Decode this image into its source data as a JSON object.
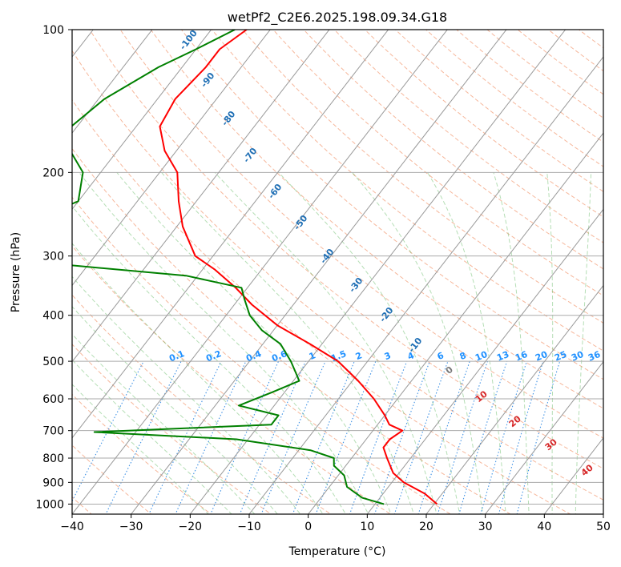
{
  "chart_data": {
    "type": "line",
    "title": "wetPf2_C2E6.2025.198.09.34.G18",
    "xlabel": "Temperature (°C)",
    "ylabel": "Pressure (hPa)",
    "xlim": [
      -40,
      50
    ],
    "ylim": [
      1050,
      100
    ],
    "y_scale": "log",
    "skew_t": true,
    "x_ticks": [
      -40,
      -30,
      -20,
      -10,
      0,
      10,
      20,
      30,
      40,
      50
    ],
    "y_ticks": [
      100,
      200,
      300,
      400,
      500,
      600,
      700,
      800,
      900,
      1000
    ],
    "grid": true,
    "series": [
      {
        "color": "#ff0000",
        "style": "temperature",
        "points": [
          [
            100,
            -74
          ],
          [
            110,
            -76
          ],
          [
            120,
            -76
          ],
          [
            140,
            -77
          ],
          [
            160,
            -76
          ],
          [
            180,
            -72
          ],
          [
            200,
            -67
          ],
          [
            230,
            -63
          ],
          [
            260,
            -59
          ],
          [
            300,
            -53
          ],
          [
            320,
            -48
          ],
          [
            350,
            -42
          ],
          [
            380,
            -37
          ],
          [
            420,
            -30
          ],
          [
            460,
            -22
          ],
          [
            500,
            -15
          ],
          [
            550,
            -9
          ],
          [
            600,
            -4
          ],
          [
            650,
            0
          ],
          [
            680,
            2
          ],
          [
            700,
            5
          ],
          [
            730,
            4
          ],
          [
            760,
            4
          ],
          [
            800,
            6
          ],
          [
            860,
            9
          ],
          [
            900,
            12
          ],
          [
            950,
            17
          ],
          [
            1000,
            20.5
          ]
        ]
      },
      {
        "color": "#008000",
        "style": "dewpoint",
        "points": [
          [
            100,
            -76
          ],
          [
            110,
            -80
          ],
          [
            120,
            -84
          ],
          [
            140,
            -89
          ],
          [
            160,
            -91
          ],
          [
            180,
            -88
          ],
          [
            200,
            -83
          ],
          [
            230,
            -80
          ],
          [
            250,
            -85
          ],
          [
            265,
            -100
          ],
          [
            280,
            -106
          ],
          [
            300,
            -104
          ],
          [
            310,
            -78
          ],
          [
            330,
            -52
          ],
          [
            350,
            -41
          ],
          [
            370,
            -39
          ],
          [
            400,
            -36
          ],
          [
            430,
            -32
          ],
          [
            460,
            -27
          ],
          [
            500,
            -23
          ],
          [
            550,
            -19
          ],
          [
            580,
            -22
          ],
          [
            620,
            -26
          ],
          [
            650,
            -18
          ],
          [
            680,
            -18
          ],
          [
            705,
            -47
          ],
          [
            730,
            -22
          ],
          [
            770,
            -8
          ],
          [
            800,
            -3
          ],
          [
            830,
            -2
          ],
          [
            870,
            1
          ],
          [
            920,
            3
          ],
          [
            970,
            7
          ],
          [
            1000,
            11.5
          ]
        ]
      }
    ],
    "dry_adiabat_labels": [
      "-100",
      "-90",
      "-80",
      "-70",
      "-60",
      "-50",
      "-40",
      "-30",
      "-20",
      "-10"
    ],
    "moist_adiabat_labels": [
      "0",
      "10",
      "20",
      "30",
      "40"
    ],
    "mixing_ratio_labels": [
      "0.1",
      "0.2",
      "0.4",
      "0.6",
      "1",
      "1.5",
      "2",
      "3",
      "4",
      "6",
      "8",
      "10",
      "13",
      "16",
      "20",
      "25",
      "30",
      "36"
    ],
    "colors": {
      "temperature": "#ff0000",
      "dewpoint": "#008000",
      "isotherm": "#999999",
      "isobar": "#aaaaaa",
      "dry_adiabat": "#f4a582",
      "moist_adiabat": "#2ca02c",
      "mixing_ratio": "#1f77b4",
      "label_dry": "#1f6fb5",
      "label_moist": "#d62728",
      "label_mixing": "#1e90ff"
    }
  }
}
